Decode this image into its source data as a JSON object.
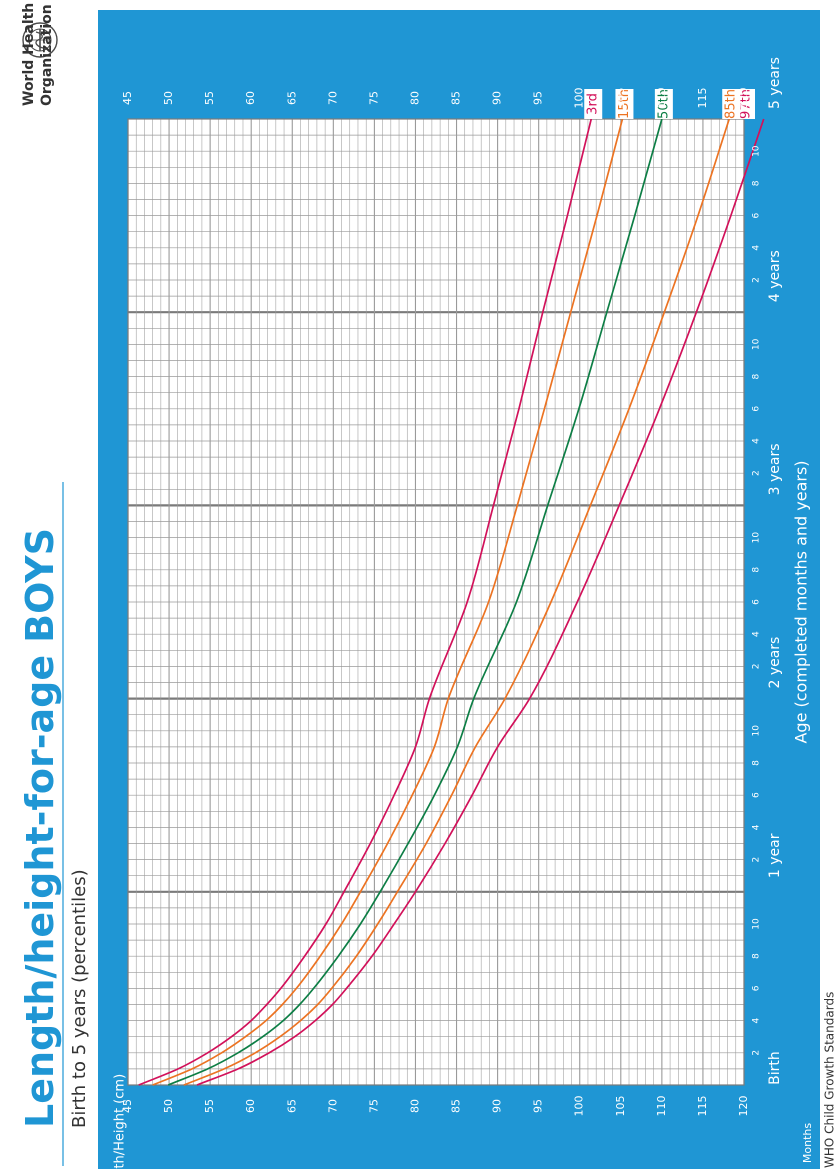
{
  "header": {
    "title_main": "Length/height-for-age",
    "title_sex": "BOYS",
    "subtitle": "Birth to 5 years (percentiles)",
    "org_line1": "World Health",
    "org_line2": "Organization",
    "footer": "WHO Child Growth Standards"
  },
  "colors": {
    "frame_blue": "#1f96d4",
    "title_blue": "#1f96d4",
    "grid": "#9a9a9a",
    "p97": "#d2115a",
    "p85": "#ec7322",
    "p50": "#0d7e45",
    "p15": "#ec7322",
    "p3": "#d2115a"
  },
  "chart_data": {
    "type": "line",
    "title": "Length/height-for-age BOYS",
    "subtitle": "Birth to 5 years (percentiles)",
    "xlabel": "Age (completed months and years)",
    "ylabel": "Length/Height (cm)",
    "months_label": "Months",
    "x_unit": "months",
    "xlim": [
      0,
      60
    ],
    "ylim": [
      45,
      120
    ],
    "y_ticks": [
      45,
      50,
      55,
      60,
      65,
      70,
      75,
      80,
      85,
      90,
      95,
      100,
      105,
      110,
      115,
      120
    ],
    "x_year_labels": [
      {
        "month": 0,
        "label": "Birth"
      },
      {
        "month": 12,
        "label": "1 year"
      },
      {
        "month": 24,
        "label": "2 years"
      },
      {
        "month": 36,
        "label": "3 years"
      },
      {
        "month": 48,
        "label": "4 years"
      },
      {
        "month": 60,
        "label": "5 years"
      }
    ],
    "x_month_ticks": [
      "2",
      "4",
      "6",
      "8",
      "10"
    ],
    "grid": true,
    "x": [
      0,
      1,
      2,
      3,
      4,
      5,
      6,
      8,
      10,
      12,
      15,
      18,
      21,
      24,
      30,
      36,
      42,
      48,
      54,
      60
    ],
    "series": [
      {
        "name": "97th",
        "color_key": "p97",
        "values": [
          53.4,
          58.4,
          62.2,
          65.3,
          67.8,
          69.9,
          71.6,
          74.7,
          77.4,
          80.0,
          83.6,
          86.9,
          90.0,
          93.9,
          99.7,
          104.8,
          109.7,
          114.2,
          118.4,
          122.4
        ]
      },
      {
        "name": "85th",
        "color_key": "p85",
        "values": [
          51.8,
          56.7,
          60.5,
          63.5,
          66.0,
          68.1,
          69.8,
          72.8,
          75.4,
          77.8,
          81.3,
          84.4,
          87.3,
          90.9,
          96.5,
          101.3,
          106.0,
          110.3,
          114.4,
          118.2
        ]
      },
      {
        "name": "50th",
        "color_key": "p50",
        "values": [
          49.9,
          54.7,
          58.4,
          61.4,
          63.9,
          65.9,
          67.6,
          70.6,
          73.3,
          75.7,
          79.1,
          82.3,
          85.1,
          87.1,
          92.3,
          96.1,
          99.9,
          103.3,
          106.7,
          110.0
        ]
      },
      {
        "name": "15th",
        "color_key": "p15",
        "values": [
          48.0,
          52.8,
          56.4,
          59.3,
          61.8,
          63.8,
          65.5,
          68.4,
          71.0,
          73.3,
          76.6,
          79.6,
          82.3,
          84.0,
          88.9,
          92.4,
          95.7,
          98.9,
          102.1,
          105.2
        ]
      },
      {
        "name": "3rd",
        "color_key": "p3",
        "values": [
          46.3,
          51.1,
          54.7,
          57.6,
          60.0,
          61.9,
          63.6,
          66.5,
          69.1,
          71.3,
          74.5,
          77.4,
          80.0,
          81.7,
          86.3,
          89.5,
          92.6,
          95.5,
          98.5,
          101.4
        ]
      }
    ]
  }
}
